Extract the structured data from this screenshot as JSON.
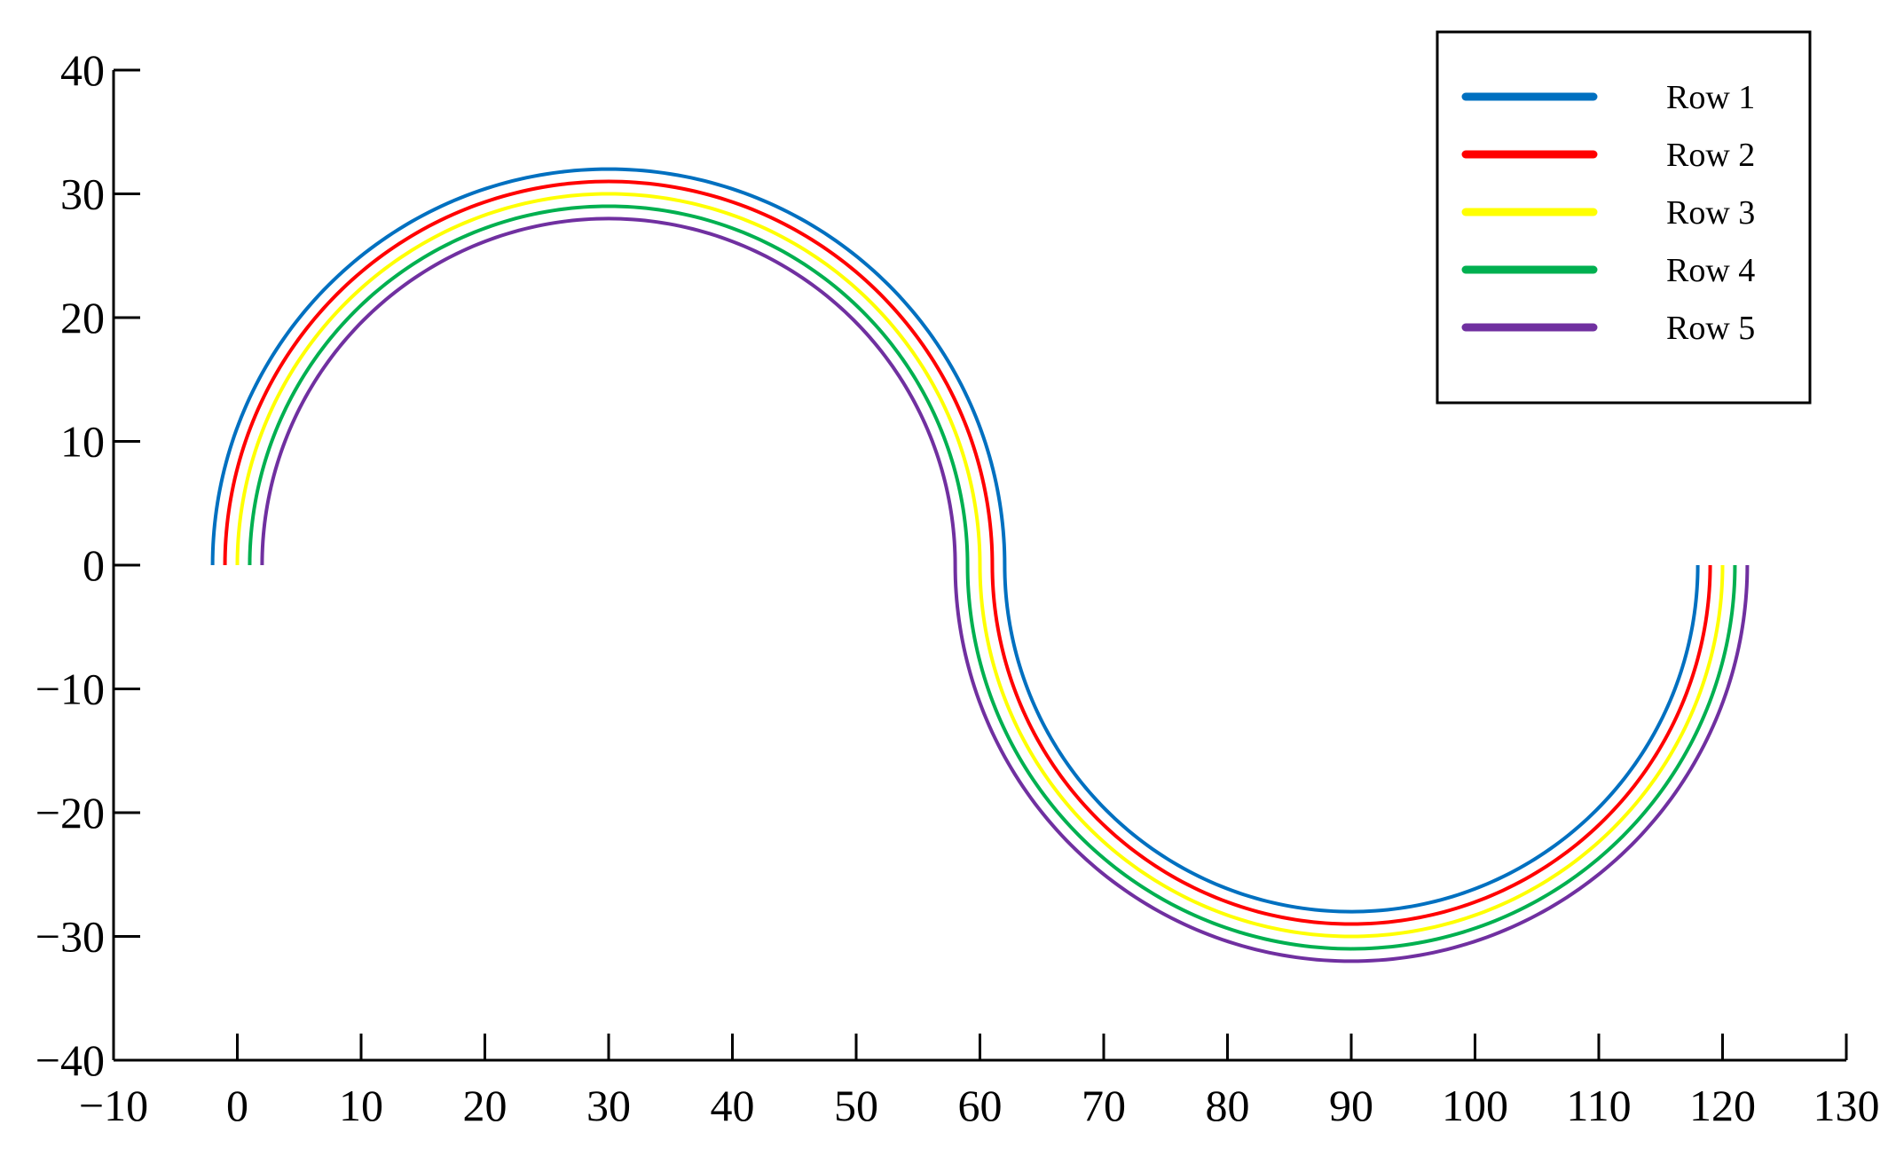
{
  "chart_data": {
    "type": "line",
    "title": "",
    "xlabel": "",
    "ylabel": "",
    "xlim": [
      -10,
      130
    ],
    "ylim": [
      -40,
      40
    ],
    "xticks": [
      -10,
      0,
      10,
      20,
      30,
      40,
      50,
      60,
      70,
      80,
      90,
      100,
      110,
      120,
      130
    ],
    "yticks": [
      40,
      30,
      20,
      10,
      0,
      -10,
      -20,
      -30,
      -40
    ],
    "xtick_labels": [
      "−10",
      "0",
      "10",
      "20",
      "30",
      "40",
      "50",
      "60",
      "70",
      "80",
      "90",
      "100",
      "110",
      "120",
      "130"
    ],
    "ytick_labels": [
      "40",
      "30",
      "20",
      "10",
      "0",
      "−10",
      "−20",
      "−30",
      "−40"
    ],
    "grid": false,
    "legend_position": "top-right",
    "shape_description": "S-shaped path: upper semicircle centered at (30, 0) from x=30-r1 to x=30+r1, then lower semicircle centered at (90, 0) from x=90-r2 to x=90+r2",
    "series": [
      {
        "name": "Row 1",
        "color": "#0070C0",
        "upper_center": [
          30,
          0
        ],
        "upper_radius": 32,
        "lower_center": [
          90,
          0
        ],
        "lower_radius": 28,
        "x_start": -2,
        "x_mid": 62,
        "x_end": 118,
        "y_peak": 32,
        "y_trough": -28
      },
      {
        "name": "Row 2",
        "color": "#FF0000",
        "upper_center": [
          30,
          0
        ],
        "upper_radius": 31,
        "lower_center": [
          90,
          0
        ],
        "lower_radius": 29,
        "x_start": -1,
        "x_mid": 61,
        "x_end": 119,
        "y_peak": 31,
        "y_trough": -29
      },
      {
        "name": "Row 3",
        "color": "#FFFF00",
        "upper_center": [
          30,
          0
        ],
        "upper_radius": 30,
        "lower_center": [
          90,
          0
        ],
        "lower_radius": 30,
        "x_start": 0,
        "x_mid": 60,
        "x_end": 120,
        "y_peak": 30,
        "y_trough": -30
      },
      {
        "name": "Row 4",
        "color": "#00B050",
        "upper_center": [
          30,
          0
        ],
        "upper_radius": 29,
        "lower_center": [
          90,
          0
        ],
        "lower_radius": 31,
        "x_start": 1,
        "x_mid": 59,
        "x_end": 121,
        "y_peak": 29,
        "y_trough": -31
      },
      {
        "name": "Row 5",
        "color": "#7030A0",
        "upper_center": [
          30,
          0
        ],
        "upper_radius": 28,
        "lower_center": [
          90,
          0
        ],
        "lower_radius": 32,
        "x_start": 2,
        "x_mid": 58,
        "x_end": 122,
        "y_peak": 28,
        "y_trough": -32
      }
    ]
  }
}
